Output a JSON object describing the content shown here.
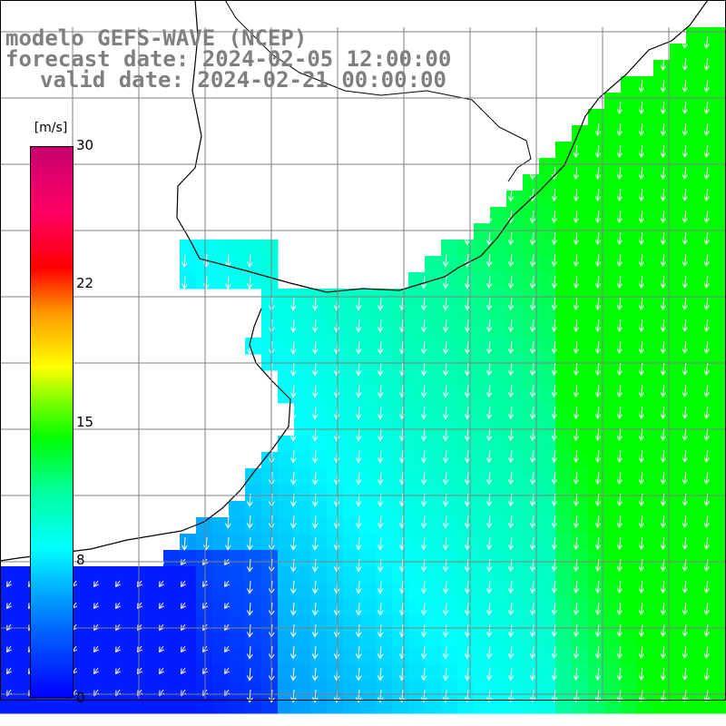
{
  "title": {
    "line1": "modelo GEFS-WAVE (NCEP)",
    "line2": "forecast date: 2024-02-05 12:00:00",
    "line3": "valid date: 2024-02-21 00:00:00"
  },
  "colorbar": {
    "unit": "[m/s]",
    "ticks": [
      "30",
      "22",
      "15",
      "8",
      "0"
    ],
    "tick_values": [
      30,
      22,
      15,
      8,
      0
    ],
    "range": [
      0,
      30
    ],
    "colors": [
      "#0000ff",
      "#0064ff",
      "#00c8ff",
      "#00ffff",
      "#00ff96",
      "#00ff00",
      "#96ff00",
      "#ffff00",
      "#ff9600",
      "#ff0000",
      "#ff0064",
      "#c8006e"
    ]
  },
  "map": {
    "land_color": "#ffffff",
    "coastline_color": "#000000",
    "grid_color": "#808080",
    "arrow_color": "#ffffff",
    "arrow_direction": "south-southwest"
  }
}
